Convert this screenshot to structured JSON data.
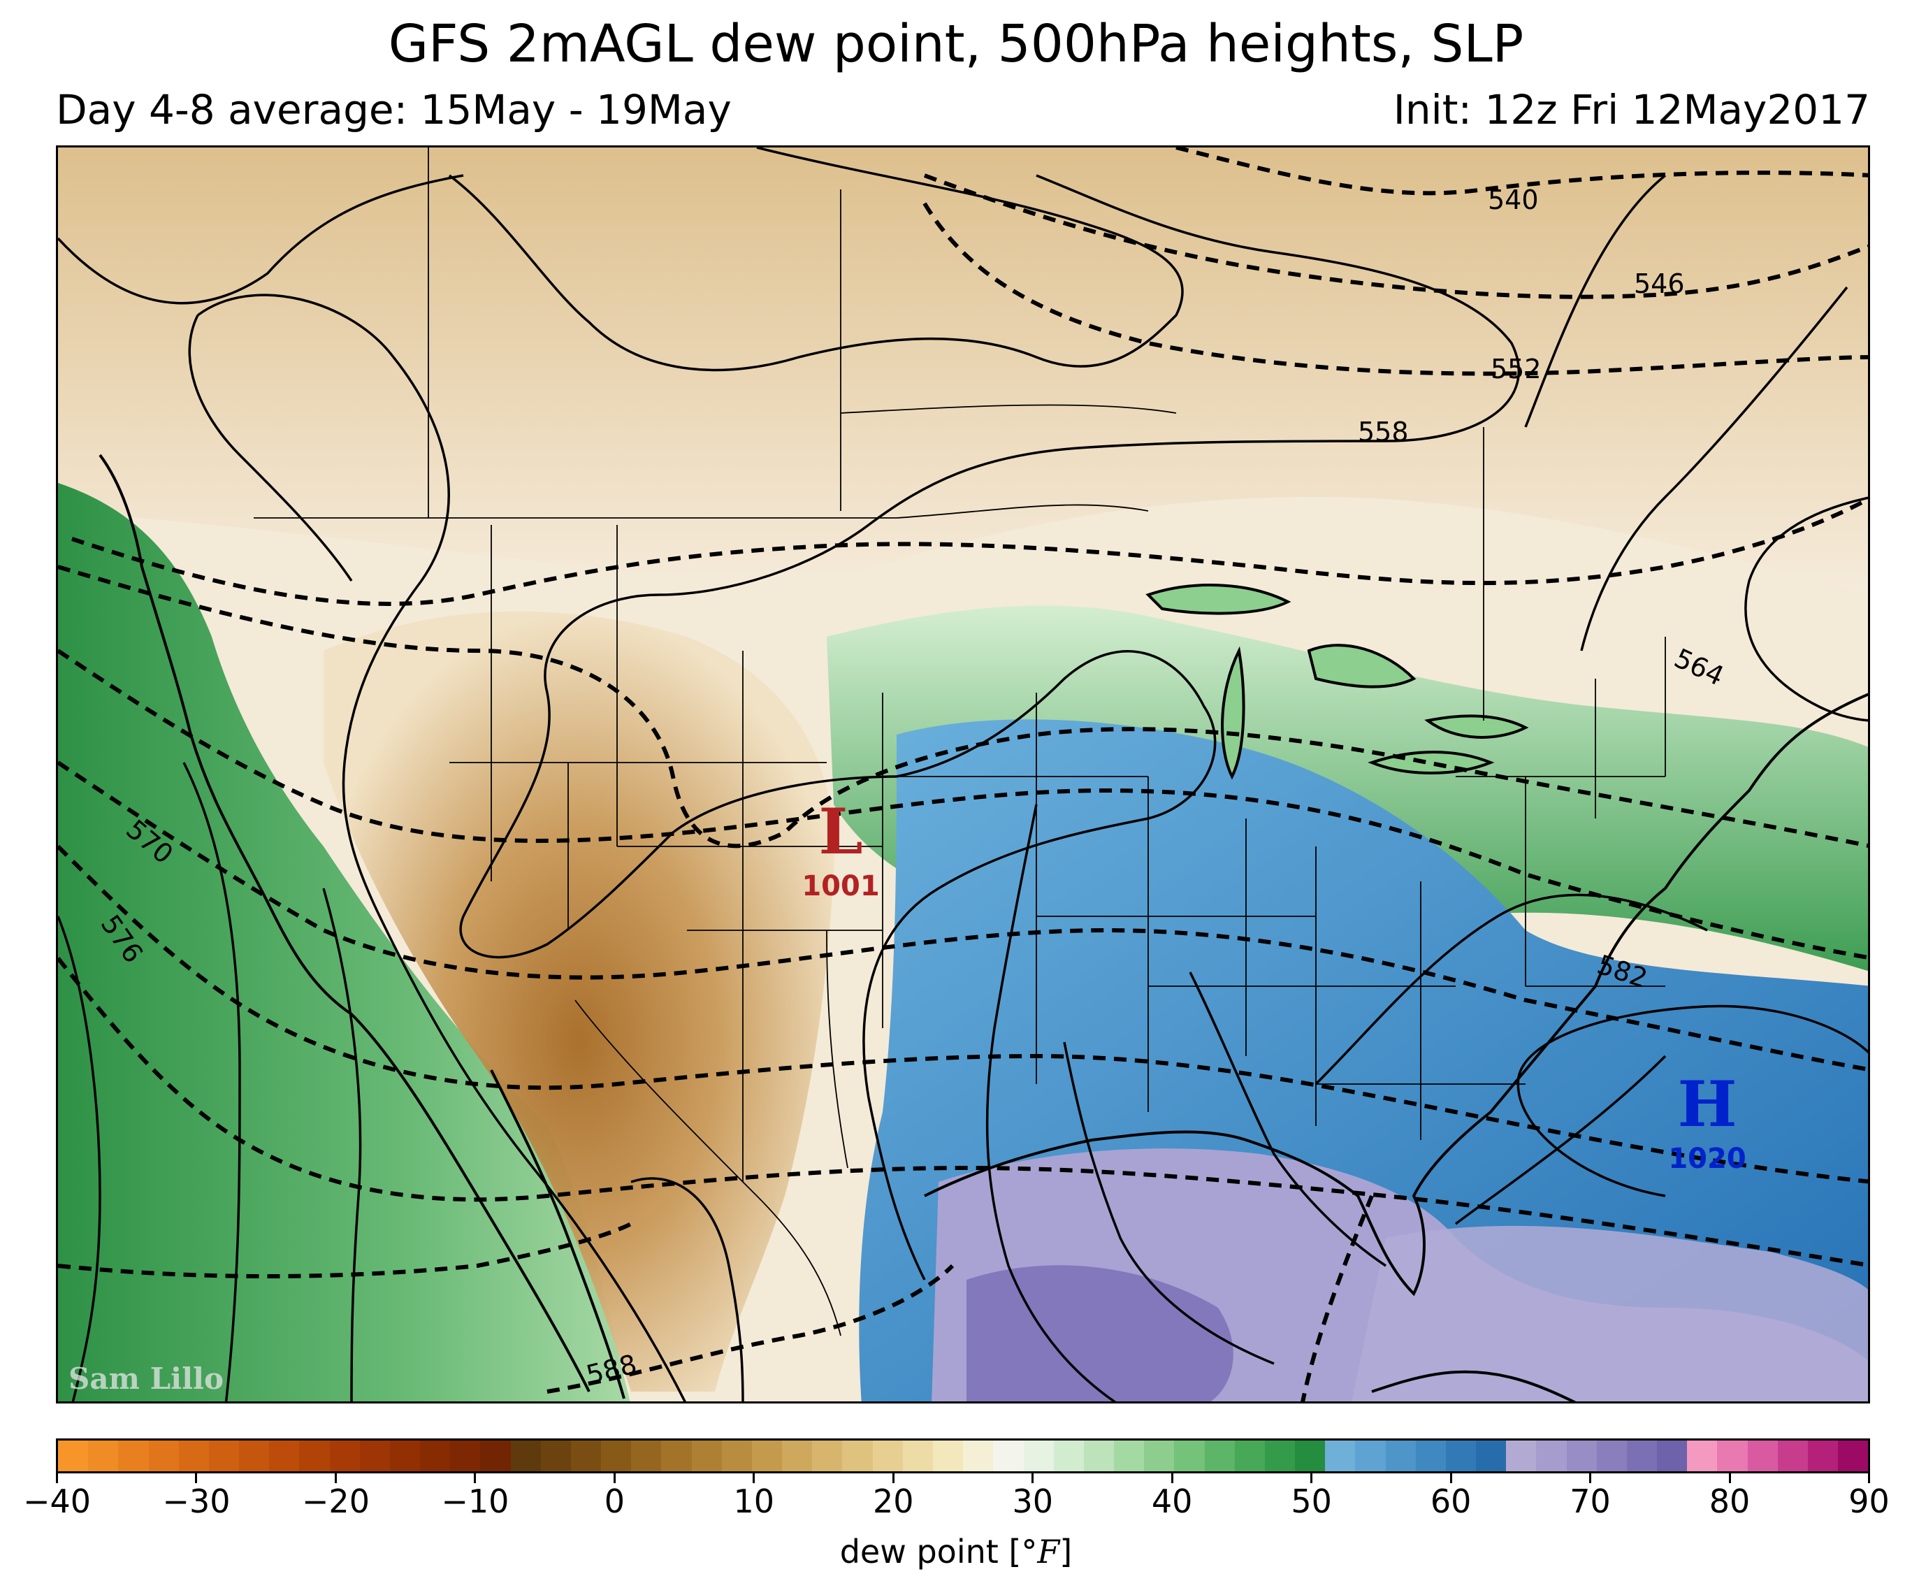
{
  "title": "GFS 2mAGL dew point, 500hPa heights, SLP",
  "subtitle_left": "Day 4-8 average: 15May - 19May",
  "subtitle_right": "Init: 12z Fri 12May2017",
  "watermark": "Sam Lillo",
  "pressure_centers": {
    "low": {
      "symbol": "L",
      "value": "1001",
      "color": "#b22222"
    },
    "high": {
      "symbol": "H",
      "value": "1020",
      "color": "#0022cc"
    }
  },
  "height_contour_labels": [
    "540",
    "546",
    "552",
    "558",
    "564",
    "570",
    "576",
    "582",
    "588"
  ],
  "colorbar": {
    "label_text": "dew point [",
    "unit_text": "°F",
    "label_close": "]",
    "ticks": [
      "−40",
      "−30",
      "−20",
      "−10",
      "0",
      "10",
      "20",
      "30",
      "40",
      "50",
      "60",
      "70",
      "80",
      "90"
    ],
    "min": -40,
    "max": 90,
    "colors": [
      "#f7952b",
      "#f08c26",
      "#e88020",
      "#e0751b",
      "#d86a16",
      "#cf6012",
      "#c6560e",
      "#bd4c0a",
      "#b24307",
      "#a83b05",
      "#9d3504",
      "#923003",
      "#872b03",
      "#7d2803",
      "#722502",
      "#5f3a0c",
      "#6c430e",
      "#7a4e12",
      "#885a18",
      "#95661f",
      "#a27328",
      "#ae8033",
      "#b98d40",
      "#c49a4d",
      "#cea85c",
      "#d7b56c",
      "#dfc27e",
      "#e7cf91",
      "#eedca6",
      "#f3e7bc",
      "#f5efd6",
      "#f3f4ec",
      "#e6f3e3",
      "#d2ecd0",
      "#bce3ba",
      "#a5d9a4",
      "#8dce8e",
      "#75c27a",
      "#5db567",
      "#47a857",
      "#339b4a",
      "#248d40",
      "#6fb0d8",
      "#5ea3d1",
      "#4e95c8",
      "#3f88c0",
      "#327ab6",
      "#286dab",
      "#b3aad4",
      "#a69cce",
      "#988dc5",
      "#8a7ebd",
      "#7c70b4",
      "#6e62aa",
      "#f49ac0",
      "#e879b1",
      "#d95aa0",
      "#c83c8e",
      "#b5207b",
      "#9c0a66"
    ]
  }
}
